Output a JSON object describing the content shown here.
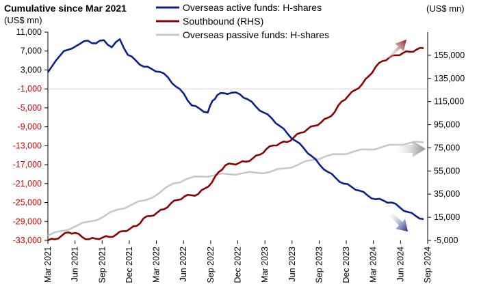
{
  "chart_data": {
    "type": "line",
    "title": "Cumulative since Mar 2021",
    "left_unit": "(US$ mn)",
    "right_unit": "(US$ mn)",
    "x_labels": [
      "Mar 2021",
      "Jun 2021",
      "Sep 2021",
      "Dec 2021",
      "Mar 2022",
      "Jun 2022",
      "Sep 2022",
      "Dec 2022",
      "Mar 2023",
      "Jun 2023",
      "Sep 2023",
      "Dec 2023",
      "Mar 2024",
      "Jun 2024",
      "Sep 2024"
    ],
    "left_axis": {
      "min": -33000,
      "max": 11000,
      "ticks": [
        11000,
        7000,
        3000,
        -1000,
        -5000,
        -9000,
        -13000,
        -17000,
        -21000,
        -25000,
        -29000,
        -33000
      ],
      "tick_labels": [
        "11,000",
        "7,000",
        "3,000",
        "-1,000",
        "-5,000",
        "-9,000",
        "-13,000",
        "-17,000",
        "-21,000",
        "-25,000",
        "-29,000",
        "-33,000"
      ],
      "positive_color": "#000000",
      "negative_color": "#d40000"
    },
    "right_axis": {
      "min": -5000,
      "max": 175000,
      "ticks": [
        155000,
        135000,
        115000,
        95000,
        75000,
        55000,
        35000,
        15000,
        -5000
      ],
      "tick_labels": [
        "155,000",
        "135,000",
        "115,000",
        "95,000",
        "75,000",
        "55,000",
        "35,000",
        "15,000",
        "-5,000"
      ]
    },
    "series": [
      {
        "name": "Overseas active funds: H-shares",
        "axis": "left",
        "color": "#0a1f8f",
        "points": [
          [
            0,
            2500
          ],
          [
            1,
            7000
          ],
          [
            2,
            8500
          ],
          [
            2.5,
            9200
          ],
          [
            3,
            8600
          ],
          [
            3.5,
            9300
          ],
          [
            4,
            7800
          ],
          [
            4.5,
            9500
          ],
          [
            5,
            6200
          ],
          [
            5.5,
            5000
          ],
          [
            6,
            3700
          ],
          [
            6.5,
            3200
          ],
          [
            7,
            2600
          ],
          [
            7.5,
            1500
          ],
          [
            8,
            -500
          ],
          [
            8.5,
            -2000
          ],
          [
            9,
            -4500
          ],
          [
            9.5,
            -5200
          ],
          [
            10,
            -6000
          ],
          [
            10.3,
            -3500
          ],
          [
            10.6,
            -2300
          ],
          [
            11,
            -1900
          ],
          [
            11.5,
            -1800
          ],
          [
            12,
            -2100
          ],
          [
            12.5,
            -3200
          ],
          [
            13,
            -4700
          ],
          [
            13.5,
            -6000
          ],
          [
            14,
            -7200
          ],
          [
            14.5,
            -8800
          ],
          [
            15,
            -10500
          ],
          [
            15.5,
            -12000
          ],
          [
            16,
            -13500
          ],
          [
            16.5,
            -15200
          ],
          [
            17,
            -17000
          ],
          [
            17.5,
            -18500
          ],
          [
            18,
            -19800
          ],
          [
            18.5,
            -21000
          ],
          [
            19,
            -21700
          ],
          [
            19.5,
            -22500
          ],
          [
            20,
            -23500
          ],
          [
            20.5,
            -24300
          ],
          [
            21,
            -24600
          ],
          [
            21.5,
            -25000
          ],
          [
            22,
            -26000
          ],
          [
            22.5,
            -27000
          ],
          [
            23,
            -27800
          ],
          [
            23.5,
            -28500
          ]
        ]
      },
      {
        "name": "Southbound (RHS)",
        "axis": "right",
        "color": "#8b0000",
        "points": [
          [
            0,
            -5000
          ],
          [
            0.5,
            -4000
          ],
          [
            1,
            -1000
          ],
          [
            1.5,
            2000
          ],
          [
            2,
            1500
          ],
          [
            2.5,
            -2000
          ],
          [
            3,
            -4000
          ],
          [
            3.5,
            -3500
          ],
          [
            4,
            -2500
          ],
          [
            4.5,
            -2000
          ],
          [
            5,
            0
          ],
          [
            5.5,
            3000
          ],
          [
            6,
            5000
          ],
          [
            6.5,
            7500
          ],
          [
            7,
            14000
          ],
          [
            7.5,
            16000
          ],
          [
            8,
            19000
          ],
          [
            8.5,
            22000
          ],
          [
            9,
            27000
          ],
          [
            9.5,
            30000
          ],
          [
            10,
            33000
          ],
          [
            10.5,
            34000
          ],
          [
            11,
            35000
          ],
          [
            11.5,
            40000
          ],
          [
            12,
            45000
          ],
          [
            12.5,
            54000
          ],
          [
            13,
            60000
          ],
          [
            13.5,
            61000
          ],
          [
            14,
            62000
          ],
          [
            14.5,
            63000
          ],
          [
            15,
            66000
          ],
          [
            15.5,
            69000
          ],
          [
            16,
            74000
          ],
          [
            16.5,
            77000
          ],
          [
            17,
            79000
          ],
          [
            17.5,
            80000
          ],
          [
            18,
            84000
          ],
          [
            18.5,
            88000
          ],
          [
            19,
            91000
          ],
          [
            19.5,
            94000
          ],
          [
            20,
            97000
          ],
          [
            20.5,
            101000
          ],
          [
            21,
            106000
          ],
          [
            21.5,
            115000
          ],
          [
            22,
            120000
          ],
          [
            22.5,
            125000
          ],
          [
            23,
            130000
          ],
          [
            23.5,
            137000
          ],
          [
            24,
            145000
          ],
          [
            24.5,
            150000
          ],
          [
            25,
            153000
          ],
          [
            25.5,
            155000
          ],
          [
            26,
            157000
          ],
          [
            26.5,
            158000
          ],
          [
            27,
            160000
          ],
          [
            27.5,
            161000
          ]
        ]
      },
      {
        "name": "Overseas passive funds: H-shares",
        "axis": "left",
        "color": "#c8c8c8",
        "points": [
          [
            0,
            -32000
          ],
          [
            1,
            -31000
          ],
          [
            2,
            -30000
          ],
          [
            3,
            -29000
          ],
          [
            4,
            -28000
          ],
          [
            5,
            -26500
          ],
          [
            6,
            -25500
          ],
          [
            7,
            -24500
          ],
          [
            8,
            -23000
          ],
          [
            9,
            -21000
          ],
          [
            10,
            -20000
          ],
          [
            11,
            -19500
          ],
          [
            12,
            -19200
          ],
          [
            13,
            -19000
          ],
          [
            14,
            -18800
          ],
          [
            15,
            -18700
          ],
          [
            16,
            -18500
          ],
          [
            17,
            -17800
          ],
          [
            18,
            -17000
          ],
          [
            19,
            -16000
          ],
          [
            20,
            -15200
          ],
          [
            21,
            -14800
          ],
          [
            22,
            -14200
          ],
          [
            23,
            -13800
          ],
          [
            24,
            -13300
          ],
          [
            25,
            -12800
          ],
          [
            26,
            -12400
          ],
          [
            27,
            -12300
          ]
        ]
      }
    ],
    "legend_placement": "top",
    "grid": false
  }
}
